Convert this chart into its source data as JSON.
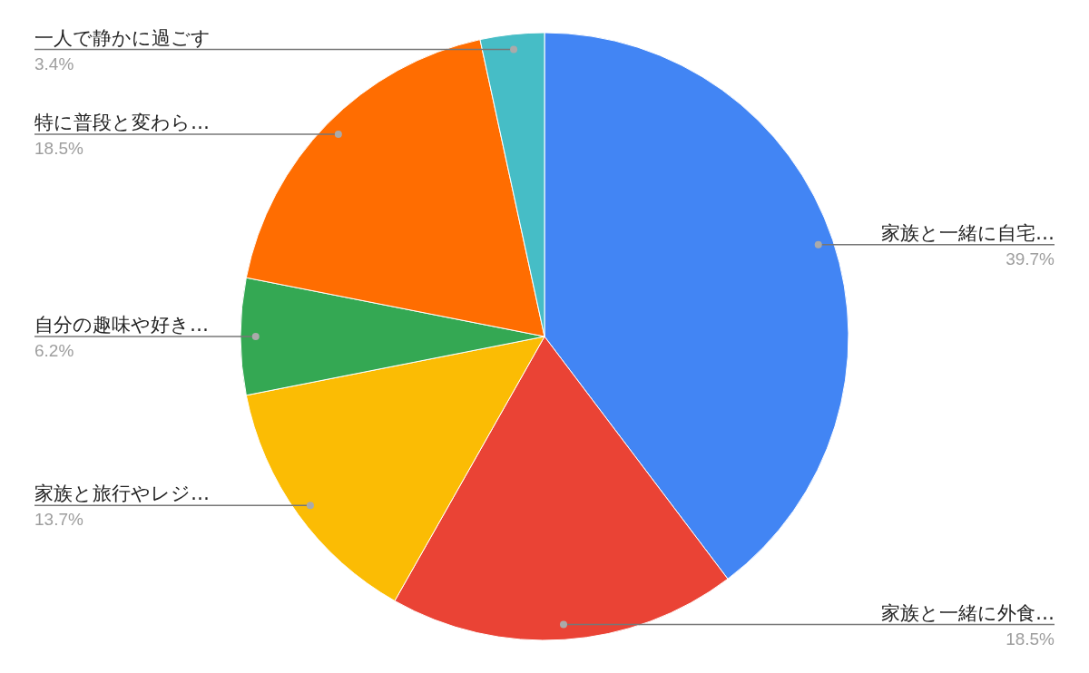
{
  "chart_data": {
    "type": "pie",
    "categories": [
      "家族と一緒に自宅…",
      "家族と一緒に外食…",
      "家族と旅行やレジ…",
      "自分の趣味や好き…",
      "特に普段と変わら…",
      "一人で静かに過ごす"
    ],
    "values": [
      39.7,
      18.5,
      13.7,
      6.2,
      18.5,
      3.4
    ],
    "colors": [
      "#4285f4",
      "#ea4335",
      "#fbbc04",
      "#34a853",
      "#ff6d01",
      "#46bdc6"
    ],
    "value_labels": [
      "39.7%",
      "18.5%",
      "13.7%",
      "6.2%",
      "18.5%",
      "3.4%"
    ]
  }
}
